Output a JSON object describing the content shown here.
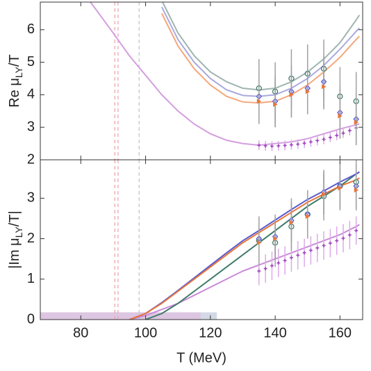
{
  "chart_data": [
    {
      "type": "line",
      "ylabel": {
        "main": "Re μ",
        "sub": "LY",
        "tail": "/T"
      },
      "xlim": [
        67.5,
        167
      ],
      "xticks": [
        80,
        100,
        120,
        140,
        160
      ],
      "ylim": [
        2,
        6.85
      ],
      "yticks": [
        2,
        3,
        4,
        5,
        6
      ],
      "vlines": [
        {
          "x": 90.5,
          "color": "#e8a0a0"
        },
        {
          "x": 91.5,
          "color": "#e8a0c0"
        },
        {
          "x": 98,
          "color": "#c0c0c0"
        }
      ],
      "series": [
        {
          "marker": null,
          "color": "#9fb5b0",
          "x": [
            105,
            110,
            115,
            120,
            125,
            130,
            135,
            140,
            145,
            150,
            155,
            160,
            165,
            166
          ],
          "values": [
            6.9,
            5.9,
            5.2,
            4.7,
            4.4,
            4.2,
            4.15,
            4.2,
            4.4,
            4.7,
            5.1,
            5.6,
            6.3,
            6.45
          ]
        },
        {
          "marker": null,
          "color": "#a9a9e0",
          "x": [
            105,
            110,
            115,
            120,
            125,
            130,
            135,
            140,
            145,
            150,
            155,
            160,
            165,
            166
          ],
          "values": [
            6.7,
            5.7,
            5.0,
            4.5,
            4.15,
            3.98,
            3.95,
            4.0,
            4.2,
            4.5,
            4.9,
            5.4,
            5.95,
            6.05
          ]
        },
        {
          "marker": null,
          "color": "#f4a77a",
          "x": [
            105,
            110,
            115,
            120,
            125,
            130,
            135,
            140,
            145,
            150,
            155,
            160,
            165,
            166
          ],
          "values": [
            6.5,
            5.5,
            4.8,
            4.3,
            3.95,
            3.78,
            3.75,
            3.8,
            4.0,
            4.3,
            4.7,
            5.15,
            5.7,
            5.8
          ]
        },
        {
          "marker": null,
          "color": "#d49ee0",
          "x": [
            83,
            90,
            95,
            100,
            105,
            110,
            115,
            120,
            125,
            130,
            135,
            140,
            145,
            150,
            155,
            160,
            166
          ],
          "values": [
            6.85,
            5.9,
            5.2,
            4.6,
            4.0,
            3.5,
            3.1,
            2.8,
            2.6,
            2.5,
            2.45,
            2.5,
            2.55,
            2.65,
            2.8,
            2.95,
            3.1
          ]
        },
        {
          "marker": "cross",
          "color": "#a040c0",
          "errcolor": "#dcaae8",
          "x": [
            135,
            137,
            139,
            141,
            143,
            145,
            147,
            149,
            151,
            153,
            155,
            157,
            159,
            161,
            163,
            165
          ],
          "values": [
            2.45,
            2.43,
            2.42,
            2.43,
            2.44,
            2.46,
            2.48,
            2.51,
            2.55,
            2.59,
            2.63,
            2.69,
            2.75,
            2.82,
            2.9,
            2.98
          ],
          "errors": [
            0.15,
            0.15,
            0.15,
            0.15,
            0.15,
            0.15,
            0.15,
            0.15,
            0.15,
            0.15,
            0.15,
            0.15,
            0.15,
            0.15,
            0.15,
            0.15
          ]
        },
        {
          "marker": "circle",
          "color": "#3e7a6a",
          "errcolor": "#a0a0a0",
          "x": [
            135,
            140,
            145,
            150,
            155,
            160,
            165
          ],
          "values": [
            4.2,
            4.1,
            4.5,
            4.65,
            4.8,
            3.95,
            3.8
          ],
          "errors": [
            0.9,
            0.9,
            0.9,
            0.9,
            0.9,
            0.9,
            0.9
          ]
        },
        {
          "marker": "diamond",
          "color": "#5a5ad0",
          "errcolor": "#a0a0a0",
          "x": [
            135,
            140,
            145,
            150,
            155,
            160,
            165
          ],
          "values": [
            3.95,
            3.8,
            4.1,
            4.2,
            4.4,
            3.45,
            3.25
          ],
          "errors": [
            0.8,
            0.8,
            0.8,
            0.8,
            0.8,
            0.8,
            0.8
          ]
        },
        {
          "marker": "triangle",
          "color": "#e8753a",
          "errcolor": "#a0a0a0",
          "x": [
            135,
            140,
            145,
            150,
            155,
            160,
            165
          ],
          "values": [
            3.8,
            3.7,
            4.0,
            4.1,
            4.25,
            3.35,
            3.15
          ],
          "errors": [
            0.7,
            0.7,
            0.7,
            0.7,
            0.7,
            0.7,
            0.7
          ]
        }
      ]
    },
    {
      "type": "line",
      "xlabel": "T (MeV)",
      "ylabel": {
        "main": "|Im μ",
        "sub": "LY",
        "tail": "/T|"
      },
      "xlim": [
        67.5,
        167
      ],
      "xticks": [
        80,
        100,
        120,
        140,
        160
      ],
      "ylim": [
        0,
        3.95
      ],
      "yticks": [
        0,
        1,
        2,
        3
      ],
      "vlines": [
        {
          "x": 90.5,
          "color": "#e8a0a0"
        },
        {
          "x": 91.5,
          "color": "#e8a0c0"
        },
        {
          "x": 98,
          "color": "#c0c0c0"
        }
      ],
      "bands": [
        {
          "x": [
            67.5,
            122
          ],
          "height": 0.18,
          "color": "#c8d0e0"
        },
        {
          "x": [
            67.5,
            117
          ],
          "height": 0.18,
          "color": "#e0c0e0"
        }
      ],
      "series": [
        {
          "marker": null,
          "color": "#c98ad8",
          "x": [
            95,
            100,
            105,
            110,
            115,
            120,
            125,
            130,
            135,
            140,
            145,
            150,
            155,
            160,
            165,
            166
          ],
          "values": [
            0,
            0.1,
            0.25,
            0.4,
            0.6,
            0.8,
            1.0,
            1.2,
            1.35,
            1.5,
            1.65,
            1.8,
            1.95,
            2.1,
            2.3,
            2.35
          ]
        },
        {
          "marker": null,
          "color": "#3e7a6a",
          "x": [
            95,
            100,
            105,
            110,
            115,
            120,
            125,
            130,
            135,
            140,
            145,
            150,
            155,
            160,
            165,
            166
          ],
          "values": [
            null,
            0,
            0.15,
            0.4,
            0.7,
            1.0,
            1.3,
            1.6,
            1.9,
            2.2,
            2.5,
            2.8,
            3.05,
            3.3,
            3.6,
            3.65
          ]
        },
        {
          "marker": null,
          "color": "#5a5ad0",
          "x": [
            95,
            100,
            105,
            110,
            115,
            120,
            125,
            130,
            135,
            140,
            145,
            150,
            155,
            160,
            165,
            166
          ],
          "values": [
            0,
            0.15,
            0.42,
            0.72,
            1.03,
            1.34,
            1.65,
            1.95,
            2.2,
            2.46,
            2.72,
            2.97,
            3.18,
            3.4,
            3.6,
            3.65
          ]
        },
        {
          "marker": null,
          "color": "#e8753a",
          "x": [
            95,
            100,
            105,
            110,
            115,
            120,
            125,
            130,
            135,
            140,
            145,
            150,
            155,
            160,
            165,
            166
          ],
          "values": [
            0,
            0.15,
            0.4,
            0.7,
            1.0,
            1.3,
            1.6,
            1.9,
            2.15,
            2.4,
            2.65,
            2.9,
            3.1,
            3.3,
            3.45,
            3.5
          ]
        },
        {
          "marker": "cross",
          "color": "#a040c0",
          "errcolor": "#dcaae8",
          "x": [
            135,
            137,
            139,
            141,
            143,
            145,
            147,
            149,
            151,
            153,
            155,
            157,
            159,
            161,
            163,
            165
          ],
          "values": [
            1.2,
            1.26,
            1.33,
            1.4,
            1.46,
            1.53,
            1.59,
            1.65,
            1.71,
            1.77,
            1.83,
            1.89,
            1.95,
            2.01,
            2.09,
            2.2
          ],
          "errors": [
            0.35,
            0.35,
            0.35,
            0.35,
            0.35,
            0.35,
            0.35,
            0.35,
            0.35,
            0.35,
            0.35,
            0.35,
            0.35,
            0.35,
            0.35,
            0.35
          ]
        },
        {
          "marker": "circle",
          "color": "#3e7a6a",
          "errcolor": "#a0a0a0",
          "x": [
            135,
            140,
            145,
            150,
            155,
            160,
            165
          ],
          "values": [
            1.95,
            1.9,
            2.3,
            2.6,
            3.05,
            3.3,
            3.4
          ],
          "errors": [
            0.6,
            0.6,
            0.6,
            0.6,
            0.6,
            0.6,
            0.6
          ]
        },
        {
          "marker": "diamond",
          "color": "#5a5ad0",
          "errcolor": "#a0a0a0",
          "x": [
            135,
            140,
            145,
            150,
            155,
            160,
            165
          ],
          "values": [
            2.0,
            2.05,
            2.45,
            2.6,
            3.15,
            3.3,
            3.3
          ],
          "errors": [
            0.55,
            0.55,
            0.55,
            0.55,
            0.55,
            0.55,
            0.55
          ]
        },
        {
          "marker": "triangle",
          "color": "#e8753a",
          "errcolor": "#a0a0a0",
          "x": [
            135,
            140,
            145,
            150,
            155,
            160,
            165
          ],
          "values": [
            1.9,
            2.0,
            2.4,
            2.55,
            3.1,
            3.25,
            3.2
          ],
          "errors": [
            0.5,
            0.5,
            0.5,
            0.5,
            0.5,
            0.5,
            0.5
          ]
        }
      ]
    }
  ]
}
